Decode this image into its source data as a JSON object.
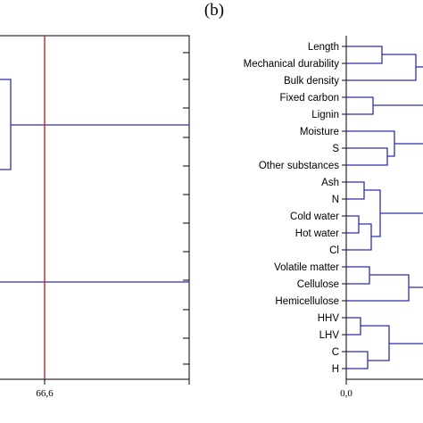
{
  "chart_data": [
    {
      "type": "dendrogram",
      "panel": "",
      "orientation": "horizontal",
      "cut_line": {
        "value": 66.6,
        "label": "66,6",
        "color": "#c0151f"
      },
      "x_tick_labels": [
        "66,6"
      ],
      "link_color": "#2c2fb0"
    },
    {
      "type": "dendrogram",
      "panel": "(b)",
      "orientation": "horizontal",
      "leaves": [
        "Length",
        "Mechanical durability",
        "Bulk density",
        "Fixed carbon",
        "Lignin",
        "Moisture",
        "S",
        "Other substances",
        "Ash",
        "N",
        "Cold water",
        "Hot water",
        "Cl",
        "Volatile matter",
        "Cellulose",
        "Hemicellulose",
        "HHV",
        "LHV",
        "C",
        "H"
      ],
      "x_tick_labels": [
        "0,0"
      ],
      "link_color": "#2c2fb0"
    }
  ]
}
